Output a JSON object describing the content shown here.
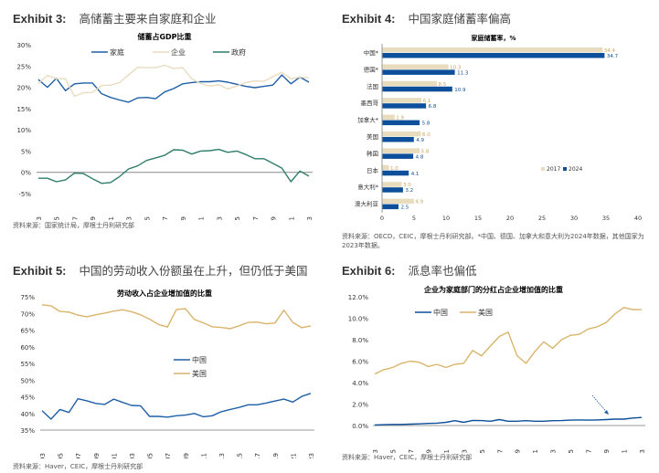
{
  "exhibits": [
    {
      "num": "Exhibit 3:",
      "title": "高储蓄主要来自家庭和企业",
      "source": "资料来源：国家统计局，摩根士丹利研究部"
    },
    {
      "num": "Exhibit 4:",
      "title": "中国家庭储蓄率偏高",
      "source": "资料来源：OECD，CEIC，摩根士丹利研究部。*中国、德国、加拿大和意大利为2024年数据，其他国家为2023年数据。"
    },
    {
      "num": "Exhibit 5:",
      "title": "中国的劳动收入份额虽在上升，但仍低于美国",
      "source": "资料来源：Haver，CEIC，摩根士丹利研究部"
    },
    {
      "num": "Exhibit 6:",
      "title": "派息率也偏低",
      "source": "资料来源：Haver，CEIC，摩根士丹利研究部"
    }
  ],
  "colors": {
    "blue": "#1f5fa6",
    "beige": "#e8dcbf",
    "green": "#2e7d6b",
    "gold": "#d9b46a",
    "navy": "#0d4f9a",
    "zero": "#888888"
  },
  "chart_data": [
    {
      "type": "line",
      "title": "储蓄占GDP比重",
      "x": [
        1993,
        1994,
        1995,
        1996,
        1997,
        1998,
        1999,
        2000,
        2001,
        2002,
        2003,
        2004,
        2005,
        2006,
        2007,
        2008,
        2009,
        2010,
        2011,
        2012,
        2013,
        2014,
        2015,
        2016,
        2017,
        2018,
        2019,
        2020,
        2021,
        2022,
        2023
      ],
      "xticks": [
        "1993",
        "1995",
        "1997",
        "1999",
        "2001",
        "2003",
        "2005",
        "2007",
        "2009",
        "2011",
        "2013",
        "2015",
        "2017",
        "2019",
        "2021",
        "2023"
      ],
      "yticks": [
        "30%",
        "25%",
        "20%",
        "15%",
        "10%",
        "5%",
        "0%",
        "-5%"
      ],
      "ylim": [
        -5,
        30
      ],
      "series": [
        {
          "name": "家庭",
          "color": "#1f5fa6",
          "values": [
            21.8,
            20.0,
            22.1,
            19.2,
            20.8,
            21.0,
            21.0,
            18.5,
            17.6,
            17.0,
            16.5,
            17.5,
            17.6,
            17.3,
            18.9,
            19.7,
            20.8,
            21.1,
            21.3,
            21.3,
            21.5,
            21.2,
            20.7,
            20.2,
            19.9,
            20.2,
            20.5,
            22.9,
            20.8,
            22.4,
            21.2
          ]
        },
        {
          "name": "企业",
          "color": "#e8dcbf",
          "values": [
            20.9,
            22.8,
            22.0,
            22.0,
            17.9,
            18.7,
            18.8,
            20.4,
            20.5,
            21.1,
            22.9,
            24.7,
            24.6,
            24.6,
            25.2,
            24.4,
            24.6,
            22.0,
            20.9,
            20.3,
            20.6,
            19.6,
            20.3,
            21.1,
            21.5,
            21.4,
            22.5,
            23.5,
            22.0,
            22.4,
            22.2
          ]
        },
        {
          "name": "政府",
          "color": "#2e7d6b",
          "values": [
            -1.4,
            -1.4,
            -2.2,
            -1.8,
            -0.2,
            -0.3,
            -1.5,
            -2.6,
            -2.4,
            -1.0,
            0.8,
            1.5,
            2.8,
            3.4,
            4.0,
            5.3,
            5.2,
            4.3,
            5.0,
            5.1,
            5.4,
            4.7,
            5.0,
            4.2,
            3.2,
            3.2,
            2.1,
            1.0,
            -2.2,
            0.3,
            -0.9
          ]
        }
      ]
    },
    {
      "type": "bar",
      "title": "家庭储蓄率，%",
      "categories": [
        "中国*",
        "德国*",
        "法国",
        "墨西哥",
        "加拿大*",
        "美国",
        "韩国",
        "日本",
        "意大利*",
        "澳大利亚"
      ],
      "series": [
        {
          "name": "2017",
          "color": "#e8dcbf",
          "labelColor": "#c9a55a",
          "values": [
            34.4,
            10.3,
            8.5,
            6.1,
            1.9,
            6.0,
            5.8,
            1.0,
            3.0,
            4.9
          ],
          "labels": [
            "34.4",
            "10.3",
            "8.5",
            "6.1",
            "1.9",
            "6.0",
            "5.8",
            "1.0",
            "3.0",
            "4.9"
          ]
        },
        {
          "name": "2024",
          "color": "#0d4f9a",
          "labelColor": "#0d4f9a",
          "values": [
            34.7,
            11.3,
            10.9,
            6.8,
            5.8,
            4.9,
            4.8,
            4.1,
            3.2,
            2.5
          ],
          "labels": [
            "34.7",
            "11.3",
            "10.9",
            "6.8",
            "5.8",
            "4.9",
            "4.8",
            "4.1",
            "3.2",
            "2.5"
          ]
        }
      ],
      "xticks": [
        "0",
        "5",
        "10",
        "15",
        "20",
        "25",
        "30",
        "35",
        "40"
      ],
      "xlim": [
        0,
        40
      ],
      "legend": [
        "2017",
        "2024"
      ]
    },
    {
      "type": "line",
      "title": "劳动收入占企业增加值的比重",
      "x": [
        1993,
        1994,
        1995,
        1996,
        1997,
        1998,
        1999,
        2000,
        2001,
        2002,
        2003,
        2004,
        2005,
        2006,
        2007,
        2008,
        2009,
        2010,
        2011,
        2012,
        2013,
        2014,
        2015,
        2016,
        2017,
        2018,
        2019,
        2020,
        2021,
        2022,
        2023
      ],
      "xticks": [
        "1993",
        "1995",
        "1997",
        "1999",
        "2001",
        "2003",
        "2005",
        "2007",
        "2009",
        "2011",
        "2013",
        "2015",
        "2017",
        "2019",
        "2021",
        "2023"
      ],
      "yticks": [
        "75%",
        "70%",
        "65%",
        "60%",
        "55%",
        "50%",
        "45%",
        "40%",
        "35%"
      ],
      "ylim": [
        35,
        75
      ],
      "series": [
        {
          "name": "中国",
          "color": "#1f5fa6",
          "values": [
            40.8,
            38.3,
            41.2,
            40.3,
            44.4,
            43.8,
            43.0,
            42.7,
            44.3,
            43.3,
            42.4,
            42.3,
            39.1,
            39.1,
            38.9,
            39.3,
            39.5,
            40.0,
            39.0,
            39.3,
            40.5,
            41.2,
            41.8,
            42.6,
            42.6,
            43.1,
            43.7,
            44.3,
            43.4,
            45.1,
            46.0
          ]
        },
        {
          "name": "美国",
          "color": "#d9b46a",
          "values": [
            72.6,
            72.3,
            70.6,
            70.4,
            69.5,
            69.0,
            69.6,
            70.1,
            70.7,
            71.1,
            70.5,
            69.6,
            68.3,
            66.7,
            65.9,
            71.2,
            71.4,
            68.2,
            67.2,
            66.0,
            65.8,
            65.4,
            66.3,
            67.3,
            67.4,
            66.9,
            67.1,
            71.0,
            67.3,
            65.7,
            66.3
          ]
        }
      ],
      "legend": [
        "中国",
        "美国"
      ]
    },
    {
      "type": "line",
      "title": "企业为家庭部门的分红占企业增加值的比重",
      "x": [
        1993,
        1994,
        1995,
        1996,
        1997,
        1998,
        1999,
        2000,
        2001,
        2002,
        2003,
        2004,
        2005,
        2006,
        2007,
        2008,
        2009,
        2010,
        2011,
        2012,
        2013,
        2014,
        2015,
        2016,
        2017,
        2018,
        2019,
        2020,
        2021,
        2022,
        2023
      ],
      "xticks": [
        "1993",
        "1995",
        "1997",
        "1999",
        "2001",
        "2003",
        "2005",
        "2007",
        "2009",
        "2011",
        "2013",
        "2015",
        "2017",
        "2019",
        "2021",
        "2023"
      ],
      "yticks": [
        "12.0%",
        "10.0%",
        "8.0%",
        "6.0%",
        "4.0%",
        "2.0%",
        "0.0%"
      ],
      "ylim": [
        0,
        12
      ],
      "series": [
        {
          "name": "中国",
          "color": "#0d4f9a",
          "values": [
            0.05,
            0.08,
            0.1,
            0.1,
            0.13,
            0.15,
            0.2,
            0.22,
            0.3,
            0.45,
            0.3,
            0.48,
            0.46,
            0.4,
            0.55,
            0.4,
            0.4,
            0.45,
            0.4,
            0.4,
            0.45,
            0.46,
            0.5,
            0.52,
            0.5,
            0.52,
            0.55,
            0.6,
            0.6,
            0.7,
            0.75
          ]
        },
        {
          "name": "美国",
          "color": "#d9b46a",
          "values": [
            4.8,
            5.2,
            5.4,
            5.8,
            6.0,
            5.9,
            5.5,
            5.7,
            5.4,
            5.7,
            5.8,
            7.0,
            6.5,
            7.4,
            8.3,
            8.7,
            6.5,
            5.8,
            6.9,
            7.8,
            7.2,
            8.0,
            8.4,
            8.5,
            9.0,
            9.2,
            9.6,
            10.4,
            11.0,
            10.8,
            10.8
          ]
        }
      ],
      "legend": [
        "中国",
        "美国"
      ],
      "annotation": "arrow pointing to 中国 line"
    }
  ]
}
